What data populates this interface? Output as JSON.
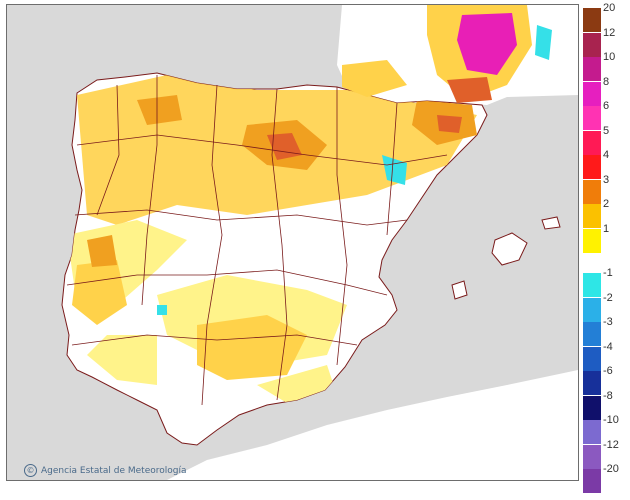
{
  "credit": {
    "logo_glyph": "©",
    "text": "Agencia Estatal de Meteorología"
  },
  "legend": {
    "positive": [
      {
        "label": "20",
        "color": "#8b3a12"
      },
      {
        "label": "12",
        "color": "#a8234f"
      },
      {
        "label": "10",
        "color": "#c41b8e"
      },
      {
        "label": "8",
        "color": "#e61fbf"
      },
      {
        "label": "6",
        "color": "#ff33b3"
      },
      {
        "label": "5",
        "color": "#ff1a55"
      },
      {
        "label": "4",
        "color": "#ff1a1a"
      },
      {
        "label": "3",
        "color": "#f07d0a"
      },
      {
        "label": "2",
        "color": "#fbc100"
      },
      {
        "label": "1",
        "color": "#fff200"
      }
    ],
    "negative": [
      {
        "label": "-1",
        "color": "#2ee6e6"
      },
      {
        "label": "-2",
        "color": "#2bb0e8"
      },
      {
        "label": "-3",
        "color": "#237fd6"
      },
      {
        "label": "-4",
        "color": "#1e5cc2"
      },
      {
        "label": "-6",
        "color": "#17309a"
      },
      {
        "label": "-8",
        "color": "#10106b"
      },
      {
        "label": "-10",
        "color": "#7c6ad0"
      },
      {
        "label": "-12",
        "color": "#8b59c0"
      },
      {
        "label": "-20",
        "color": "#7b3aa6"
      }
    ]
  },
  "colors": {
    "sea": "#d9d9d9",
    "land": "#ffffff",
    "border": "#7a1b1b",
    "light_warm": "#fff38a",
    "warm": "#ffd24a",
    "hot": "#f0a020",
    "very_hot": "#e0602a",
    "extreme": "#e81fb6",
    "cool": "#35e0e8"
  }
}
